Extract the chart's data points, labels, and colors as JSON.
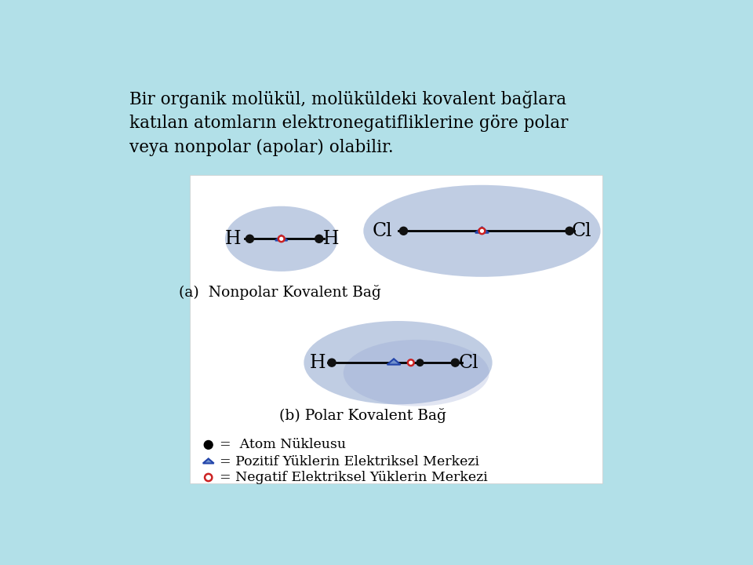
{
  "bg_color": "#b2e0e8",
  "panel_bg": "#ffffff",
  "title_line1": "Bir organik molükül, molüküldeki kovalent bağlara",
  "title_line2": "katılan atomların elektronegatifliklerine göre polar",
  "title_line3": "veya nonpolar (apolar) olabilir.",
  "ellipse_color": "#b8c6e0",
  "label_a": "(a)  Nonpolar Kovalent Bağ",
  "label_b": "(b) Polar Kovalent Bağ",
  "legend_1": "=  Atom Nükleusu",
  "legend_2": "= Pozitif Yüklerin Elektriksel Merkezi",
  "legend_3": "= Negatif Elektriksel Yüklerin Merkezi",
  "triangle_color": "#7090cc",
  "neg_circle_color": "#cc2222",
  "atom_color": "#111111"
}
